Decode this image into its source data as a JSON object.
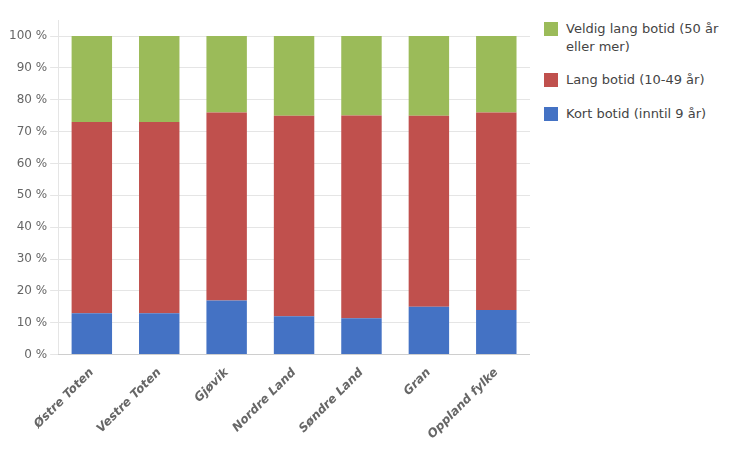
{
  "chart_data": {
    "type": "bar",
    "stacked": true,
    "grid": true,
    "legend": "right",
    "categories": [
      "Østre Toten",
      "Vestre Toten",
      "Gjøvik",
      "Nordre Land",
      "Søndre Land",
      "Gran",
      "Oppland fylke"
    ],
    "series": [
      {
        "name": "Kort botid (inntil 9 år)",
        "color": "#4472C4",
        "values": [
          13.0,
          13.0,
          17.0,
          12.0,
          11.4,
          15.0,
          14.0
        ]
      },
      {
        "name": "Lang botid (10-49 år)",
        "color": "#C0504D",
        "values": [
          60.0,
          60.0,
          59.0,
          63.0,
          63.7,
          60.0,
          62.0
        ]
      },
      {
        "name": "Veldig lang botid (50 år\neller mer)",
        "color": "#9BBB59",
        "values": [
          27.0,
          27.0,
          24.0,
          25.0,
          24.9,
          25.0,
          24.0
        ]
      }
    ],
    "ylim": [
      0,
      105
    ],
    "yticks": [
      {
        "value": 0,
        "label": "0 %"
      },
      {
        "value": 10,
        "label": "10 %"
      },
      {
        "value": 20,
        "label": "20 %"
      },
      {
        "value": 30,
        "label": "30 %"
      },
      {
        "value": 40,
        "label": "40 %"
      },
      {
        "value": 50,
        "label": "50 %"
      },
      {
        "value": 60,
        "label": "60 %"
      },
      {
        "value": 70,
        "label": "70 %"
      },
      {
        "value": 80,
        "label": "80 %"
      },
      {
        "value": 90,
        "label": "90 %"
      },
      {
        "value": 100,
        "label": "100 %"
      }
    ]
  }
}
